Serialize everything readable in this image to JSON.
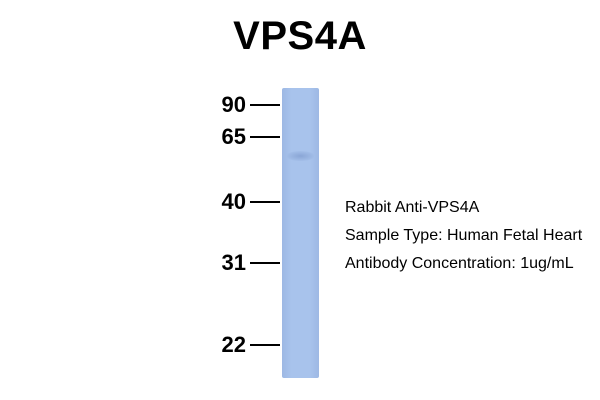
{
  "title": "VPS4A",
  "colors": {
    "lane_base": "#a8c3ec",
    "lane_dark": "#9db8e4",
    "band": "#8aa6d6"
  },
  "blot": {
    "band_kda_estimate": 50,
    "markers": [
      {
        "label": "90",
        "kda": 90
      },
      {
        "label": "65",
        "kda": 65
      },
      {
        "label": "40",
        "kda": 40
      },
      {
        "label": "31",
        "kda": 31
      },
      {
        "label": "22",
        "kda": 22
      }
    ]
  },
  "info": {
    "antibody": "Rabbit Anti-VPS4A",
    "sample": "Sample Type: Human Fetal Heart",
    "concentration": "Antibody Concentration: 1ug/mL"
  }
}
